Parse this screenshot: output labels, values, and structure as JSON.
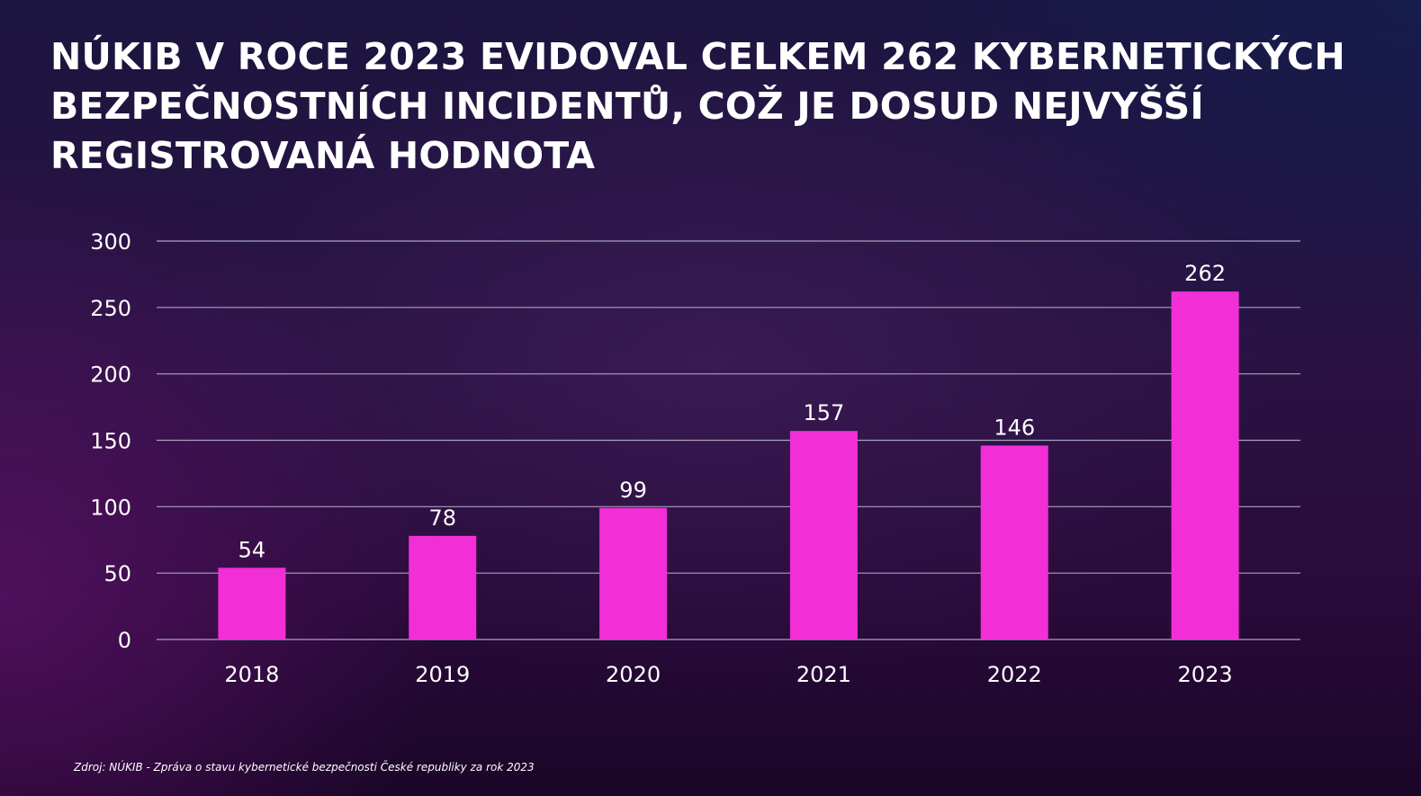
{
  "slide": {
    "title": "NÚKIB V ROCE 2023 EVIDOVAL CELKEM 262 KYBERNETICKÝCH BEZPEČNOSTNÍCH INCIDENTŮ, COŽ JE DOSUD NEJVYŠŠÍ REGISTROVANÁ HODNOTA",
    "source": "Zdroj: NÚKIB - Zpráva o stavu kybernetické bezpečnosti České republiky za rok 2023"
  },
  "chart_data": {
    "type": "bar",
    "categories": [
      "2018",
      "2019",
      "2020",
      "2021",
      "2022",
      "2023"
    ],
    "values": [
      54,
      78,
      99,
      157,
      146,
      262
    ],
    "title": "",
    "xlabel": "",
    "ylabel": "",
    "ylim": [
      0,
      300
    ],
    "yticks": [
      0,
      50,
      100,
      150,
      200,
      250,
      300
    ],
    "grid": true,
    "legend": "none",
    "data_labels": true,
    "bar_color": "#f22fd6",
    "grid_color": "#a8a2c0"
  }
}
